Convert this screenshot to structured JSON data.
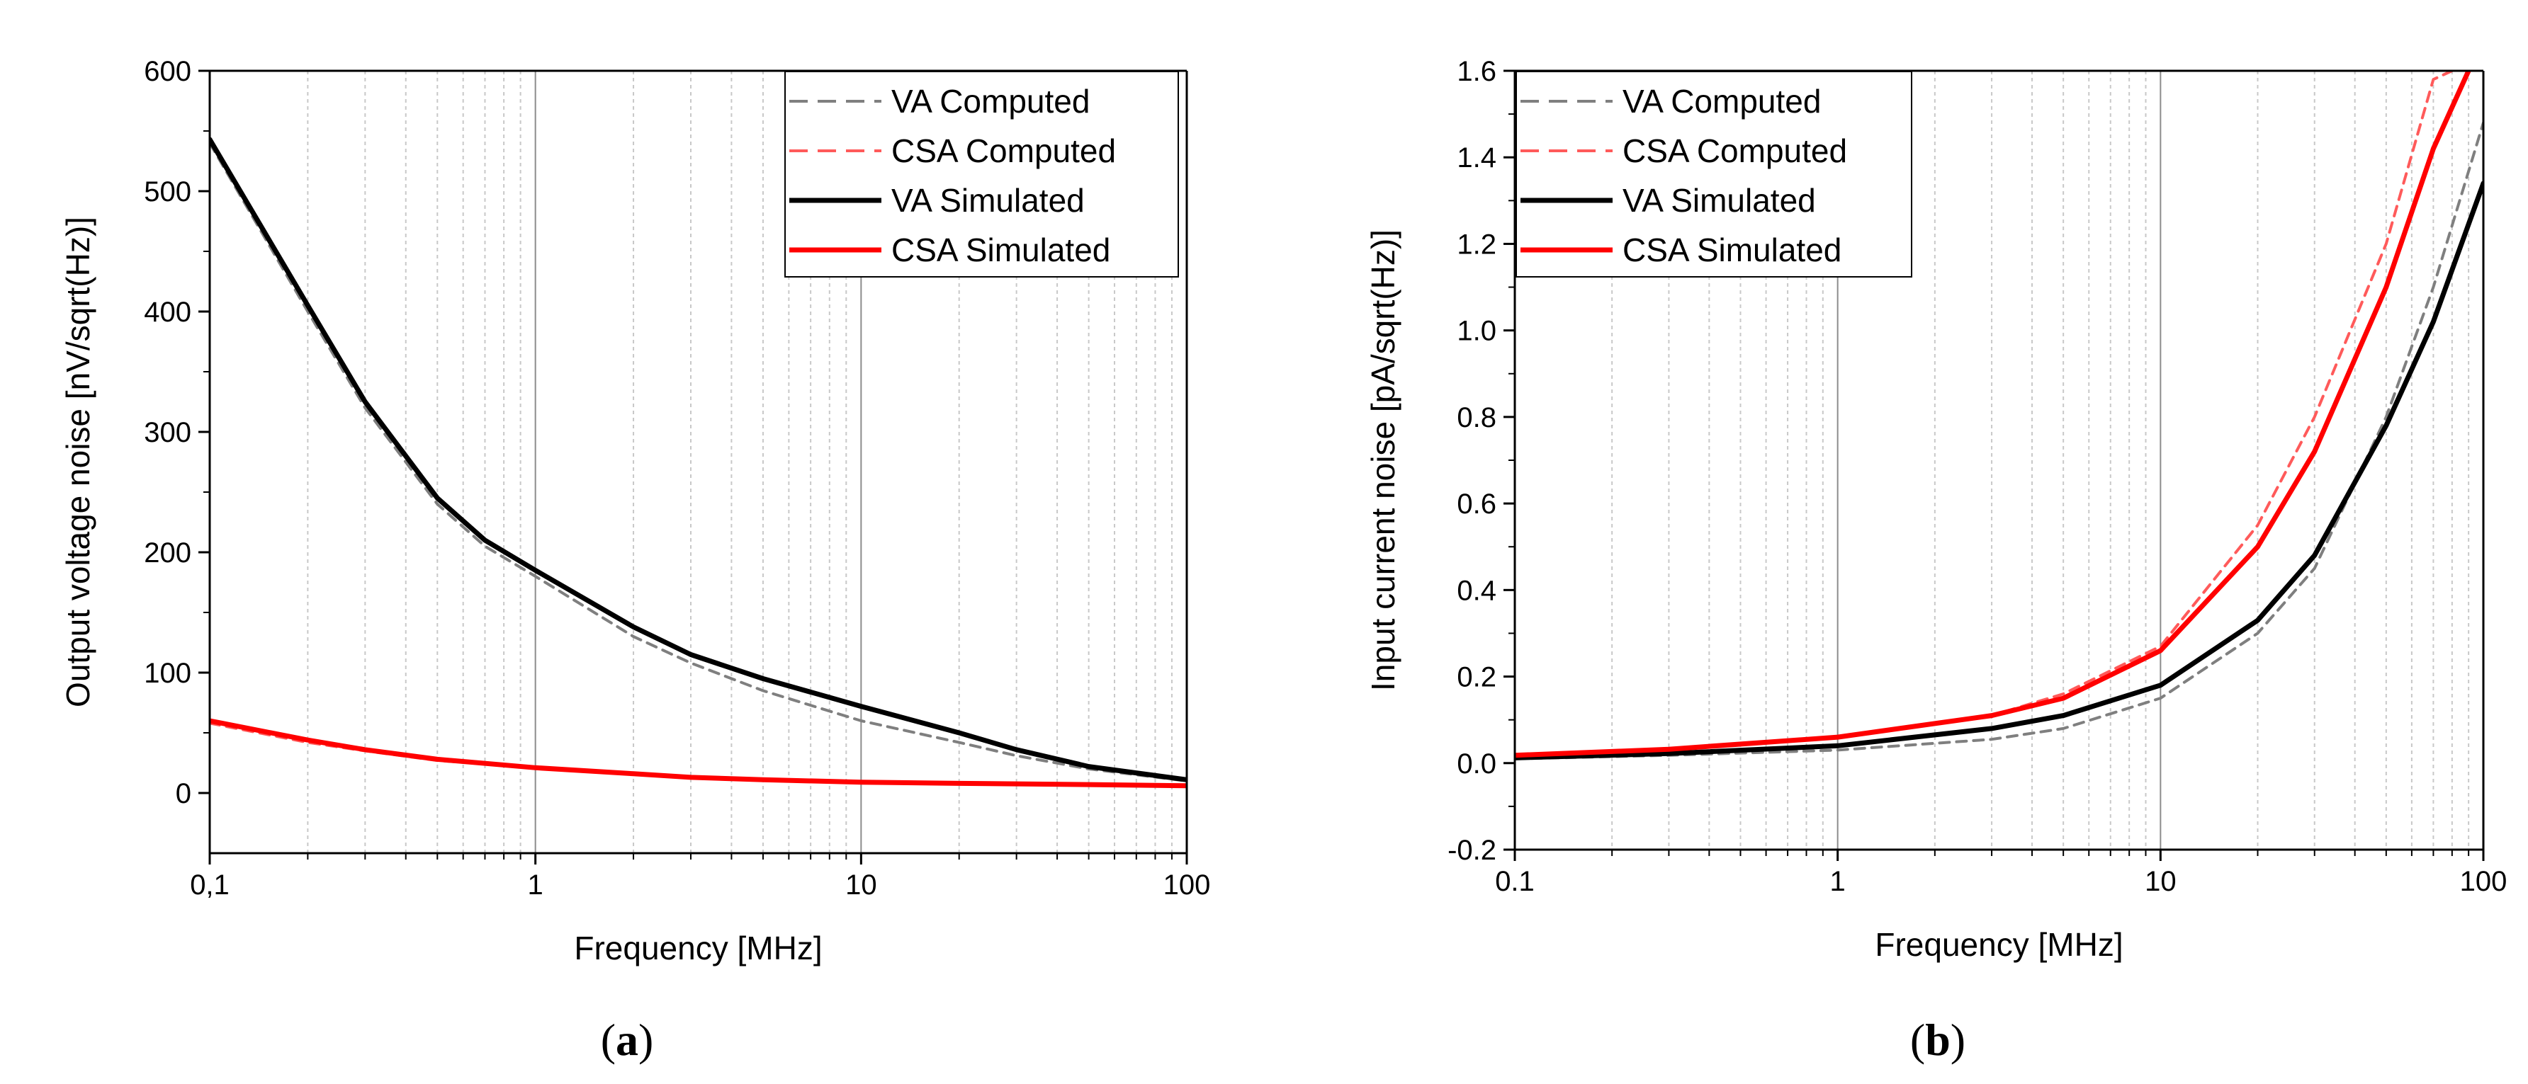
{
  "colors": {
    "va_computed": "#7f7f7f",
    "csa_computed": "#ff5a5a",
    "va_simulated": "#000000",
    "csa_simulated": "#ff0000",
    "grid_minor": "#c8c8c8",
    "grid_major": "#8c8c8c"
  },
  "chart_data": [
    {
      "panel": "a",
      "caption": {
        "open": "(",
        "letter": "a",
        "close": ")"
      },
      "type": "line",
      "xscale": "log",
      "xlabel": "Frequency [MHz]",
      "ylabel": "Output voltage noise [nV/sqrt(Hz)]",
      "xlim": [
        0.1,
        100
      ],
      "ylim": [
        -50,
        600
      ],
      "xticks": [
        0.1,
        1,
        10,
        100
      ],
      "xtick_labels": [
        "0,1",
        "1",
        "10",
        "100"
      ],
      "yticks": [
        0,
        100,
        200,
        300,
        400,
        500,
        600
      ],
      "ytick_labels": [
        "0",
        "100",
        "200",
        "300",
        "400",
        "500",
        "600"
      ],
      "grid": "vertical",
      "legend_position": "top-right",
      "legend": [
        "VA Computed",
        "CSA Computed",
        "VA Simulated",
        "CSA Simulated"
      ],
      "series": [
        {
          "name": "VA Computed",
          "style": "dashed",
          "color_key": "va_computed",
          "x": [
            0.1,
            0.2,
            0.3,
            0.5,
            0.7,
            1,
            2,
            3,
            5,
            10,
            20,
            30,
            50,
            100
          ],
          "y": [
            540,
            400,
            320,
            240,
            205,
            180,
            130,
            108,
            85,
            60,
            42,
            31,
            20,
            10
          ]
        },
        {
          "name": "CSA Computed",
          "style": "dashed",
          "color_key": "csa_computed",
          "x": [
            0.1,
            0.2,
            0.3,
            0.5,
            1,
            2,
            3,
            5,
            10,
            20,
            50,
            100
          ],
          "y": [
            58,
            42,
            35,
            27,
            21,
            16,
            13,
            11,
            9,
            8,
            7,
            6
          ]
        },
        {
          "name": "VA Simulated",
          "style": "solid",
          "color_key": "va_simulated",
          "x": [
            0.1,
            0.2,
            0.3,
            0.5,
            0.7,
            1,
            2,
            3,
            5,
            10,
            20,
            30,
            50,
            100
          ],
          "y": [
            543,
            405,
            325,
            245,
            210,
            185,
            138,
            115,
            95,
            72,
            50,
            36,
            22,
            11
          ]
        },
        {
          "name": "CSA Simulated",
          "style": "solid",
          "color_key": "csa_simulated",
          "x": [
            0.1,
            0.2,
            0.3,
            0.5,
            1,
            2,
            3,
            5,
            10,
            20,
            50,
            100
          ],
          "y": [
            60,
            44,
            36,
            28,
            21,
            16,
            13,
            11,
            9,
            8,
            7,
            6
          ]
        }
      ]
    },
    {
      "panel": "b",
      "caption": {
        "open": "(",
        "letter": "b",
        "close": ")"
      },
      "type": "line",
      "xscale": "log",
      "xlabel": "Frequency [MHz]",
      "ylabel": "Input current noise [pA/sqrt(Hz)]",
      "xlim": [
        0.1,
        100
      ],
      "ylim": [
        -0.2,
        1.6
      ],
      "xticks": [
        0.1,
        1,
        10,
        100
      ],
      "xtick_labels": [
        "0.1",
        "1",
        "10",
        "100"
      ],
      "yticks": [
        -0.2,
        0,
        0.2,
        0.4,
        0.6,
        0.8,
        1.0,
        1.2,
        1.4,
        1.6
      ],
      "ytick_labels": [
        "-0.2",
        "0.0",
        "0.2",
        "0.4",
        "0.6",
        "0.8",
        "1.0",
        "1.2",
        "1.4",
        "1.6"
      ],
      "grid": "vertical",
      "legend_position": "top-left",
      "legend": [
        "VA Computed",
        "CSA Computed",
        "VA Simulated",
        "CSA Simulated"
      ],
      "series": [
        {
          "name": "VA Computed",
          "style": "dashed",
          "color_key": "va_computed",
          "x": [
            0.1,
            0.3,
            1,
            3,
            5,
            10,
            20,
            30,
            50,
            70,
            100
          ],
          "y": [
            0.01,
            0.018,
            0.03,
            0.055,
            0.08,
            0.15,
            0.3,
            0.45,
            0.8,
            1.1,
            1.48
          ]
        },
        {
          "name": "CSA Computed",
          "style": "dashed",
          "color_key": "csa_computed",
          "x": [
            0.1,
            0.3,
            1,
            3,
            5,
            10,
            20,
            30,
            50,
            70,
            80
          ],
          "y": [
            0.015,
            0.03,
            0.06,
            0.11,
            0.16,
            0.27,
            0.55,
            0.8,
            1.2,
            1.58,
            1.6
          ]
        },
        {
          "name": "VA Simulated",
          "style": "solid",
          "color_key": "va_simulated",
          "x": [
            0.1,
            0.3,
            1,
            3,
            5,
            10,
            20,
            30,
            50,
            70,
            100
          ],
          "y": [
            0.012,
            0.022,
            0.04,
            0.08,
            0.11,
            0.18,
            0.33,
            0.48,
            0.78,
            1.02,
            1.34
          ]
        },
        {
          "name": "CSA Simulated",
          "style": "solid",
          "color_key": "csa_simulated",
          "x": [
            0.1,
            0.3,
            1,
            3,
            5,
            10,
            20,
            30,
            50,
            70,
            90
          ],
          "y": [
            0.018,
            0.032,
            0.06,
            0.11,
            0.15,
            0.26,
            0.5,
            0.72,
            1.1,
            1.42,
            1.6
          ]
        }
      ]
    }
  ]
}
